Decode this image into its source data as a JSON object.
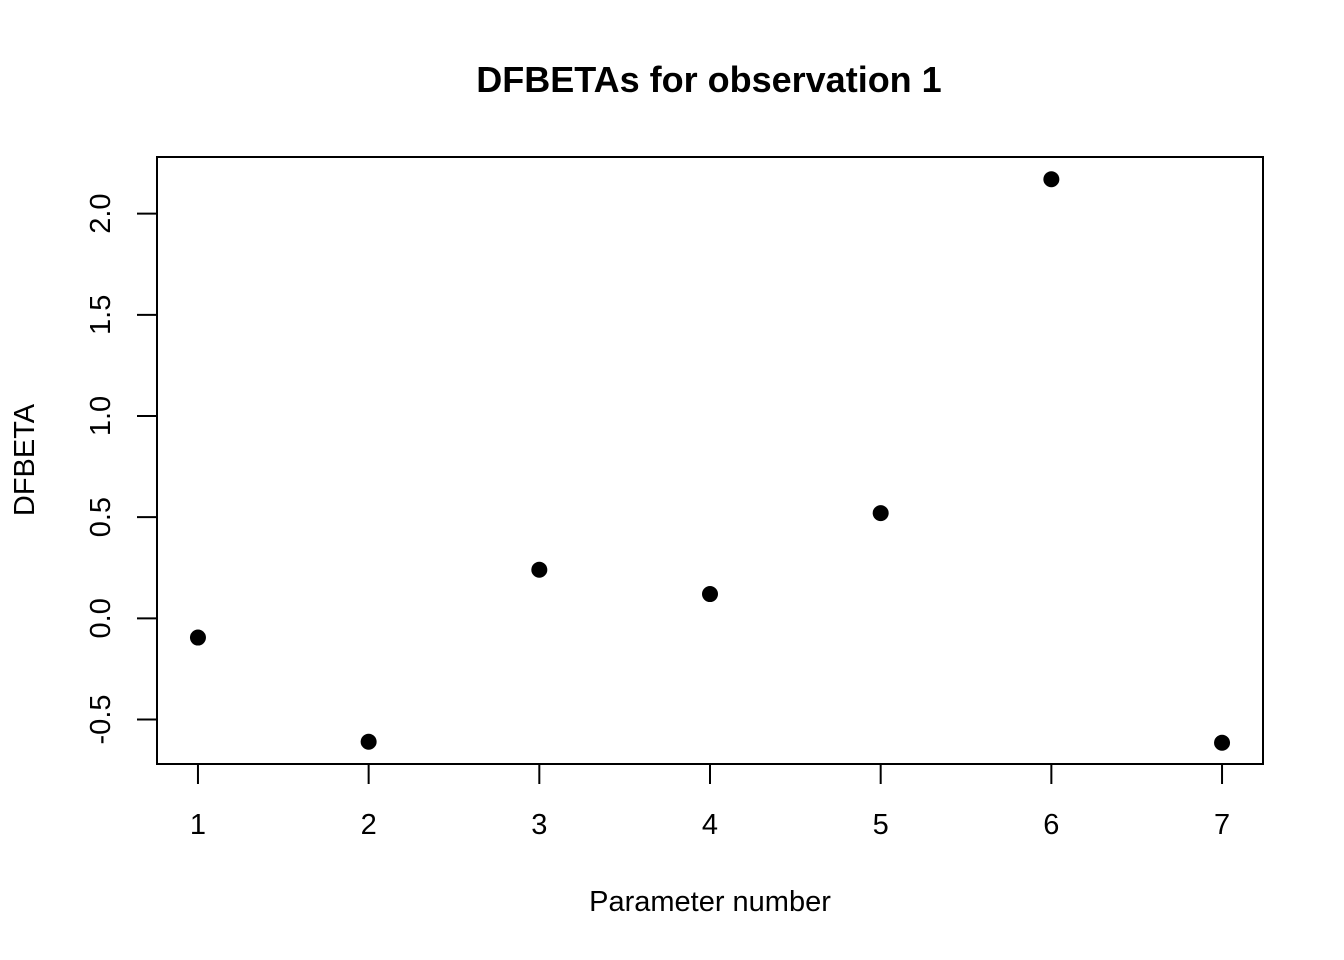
{
  "chart_data": {
    "type": "scatter",
    "title": "DFBETAs for observation 1",
    "xlabel": "Parameter number",
    "ylabel": "DFBETA",
    "x": [
      1,
      2,
      3,
      4,
      5,
      6,
      7
    ],
    "y": [
      -0.095,
      -0.61,
      0.24,
      0.12,
      0.52,
      2.17,
      -0.615
    ],
    "xlim": [
      0.76,
      7.24
    ],
    "ylim": [
      -0.72,
      2.28
    ],
    "xticks": [
      1,
      2,
      3,
      4,
      5,
      6,
      7
    ],
    "xtick_labels": [
      "1",
      "2",
      "3",
      "4",
      "5",
      "6",
      "7"
    ],
    "yticks": [
      -0.5,
      0.0,
      0.5,
      1.0,
      1.5,
      2.0
    ],
    "ytick_labels": [
      "-0.5",
      "0.0",
      "0.5",
      "1.0",
      "1.5",
      "2.0"
    ],
    "grid": false,
    "legend": "none",
    "point_color": "#000000"
  }
}
